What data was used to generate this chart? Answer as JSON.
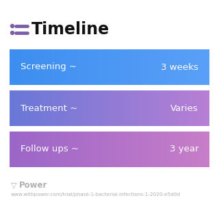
{
  "title": "Timeline",
  "title_icon_color": "#7b5ea7",
  "title_fontsize": 17,
  "title_color": "#111111",
  "background_color": "#ffffff",
  "rows": [
    {
      "label": "Screening ~",
      "value": "3 weeks",
      "color_left": "#3d8ef0",
      "color_right": "#5aa0f8"
    },
    {
      "label": "Treatment ~",
      "value": "Varies",
      "color_left": "#6878d8",
      "color_right": "#b87fd4"
    },
    {
      "label": "Follow ups ~",
      "value": "3 year",
      "color_left": "#9b66c8",
      "color_right": "#c87ec8"
    }
  ],
  "label_fontsize": 9.5,
  "value_fontsize": 9.5,
  "footer_text": "Power",
  "footer_url": "www.withpower.com/trial/phase-1-bacterial-infections-1-2020-e5d0d",
  "footer_color": "#b0b0b0",
  "footer_fontsize": 5.2,
  "footer_text_fontsize": 8.5
}
